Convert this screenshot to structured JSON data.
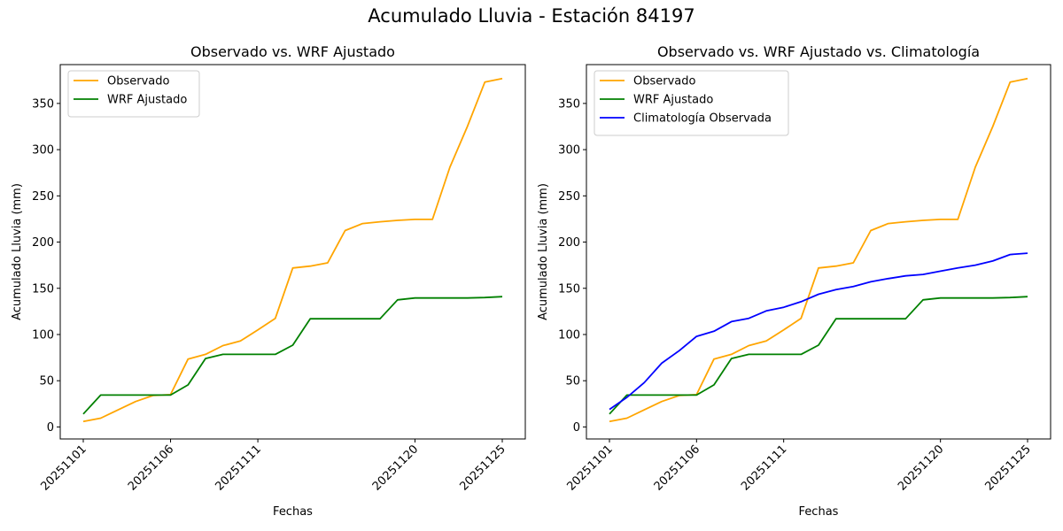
{
  "suptitle": "Acumulado Lluvia - Estación 84197",
  "chart_data": [
    {
      "type": "line",
      "title": "Observado vs. WRF Ajustado",
      "xlabel": "Fechas",
      "ylabel": "Acumulado Lluvia (mm)",
      "ylim": [
        -13,
        392
      ],
      "yticks": [
        0,
        50,
        100,
        150,
        200,
        250,
        300,
        350
      ],
      "xticks": [
        "20251101",
        "20251106",
        "20251111",
        "20251120",
        "20251125"
      ],
      "x": [
        "20251101",
        "20251102",
        "20251103",
        "20251104",
        "20251105",
        "20251106",
        "20251107",
        "20251108",
        "20251109",
        "20251110",
        "20251111",
        "20251112",
        "20251113",
        "20251114",
        "20251115",
        "20251116",
        "20251117",
        "20251118",
        "20251119",
        "20251120",
        "20251121",
        "20251122",
        "20251123",
        "20251124",
        "20251125"
      ],
      "legend_loc": "upper left",
      "grid": false,
      "series": [
        {
          "name": "Observado",
          "color": "#FFA500",
          "values": [
            6,
            9.5,
            18.5,
            27.5,
            34,
            35,
            73.5,
            78.5,
            88,
            93,
            105,
            117.5,
            172,
            174,
            177.5,
            212.5,
            220,
            222,
            223.5,
            224.5,
            224.5,
            281,
            325,
            373,
            377
          ]
        },
        {
          "name": "WRF Ajustado",
          "color": "#008000",
          "values": [
            14,
            34.5,
            34.5,
            34.5,
            34.5,
            34.5,
            45.5,
            74,
            78.5,
            78.5,
            78.5,
            78.5,
            88.5,
            117,
            117,
            117,
            117,
            117,
            137.5,
            139.5,
            139.5,
            139.5,
            139.5,
            140,
            141
          ]
        }
      ]
    },
    {
      "type": "line",
      "title": "Observado vs. WRF Ajustado vs. Climatología",
      "xlabel": "Fechas",
      "ylabel": "Acumulado Lluvia (mm)",
      "ylim": [
        -13,
        392
      ],
      "yticks": [
        0,
        50,
        100,
        150,
        200,
        250,
        300,
        350
      ],
      "xticks": [
        "20251101",
        "20251106",
        "20251111",
        "20251120",
        "20251125"
      ],
      "x": [
        "20251101",
        "20251102",
        "20251103",
        "20251104",
        "20251105",
        "20251106",
        "20251107",
        "20251108",
        "20251109",
        "20251110",
        "20251111",
        "20251112",
        "20251113",
        "20251114",
        "20251115",
        "20251116",
        "20251117",
        "20251118",
        "20251119",
        "20251120",
        "20251121",
        "20251122",
        "20251123",
        "20251124",
        "20251125"
      ],
      "legend_loc": "upper left",
      "grid": false,
      "series": [
        {
          "name": "Observado",
          "color": "#FFA500",
          "values": [
            6,
            9.5,
            18.5,
            27.5,
            34,
            35,
            73.5,
            78.5,
            88,
            93,
            105,
            117.5,
            172,
            174,
            177.5,
            212.5,
            220,
            222,
            223.5,
            224.5,
            224.5,
            281,
            325,
            373,
            377
          ]
        },
        {
          "name": "WRF Ajustado",
          "color": "#008000",
          "values": [
            14,
            34.5,
            34.5,
            34.5,
            34.5,
            34.5,
            45.5,
            74,
            78.5,
            78.5,
            78.5,
            78.5,
            88.5,
            117,
            117,
            117,
            117,
            117,
            137.5,
            139.5,
            139.5,
            139.5,
            139.5,
            140,
            141
          ]
        },
        {
          "name": "Climatología Observada",
          "color": "#0000FF",
          "values": [
            19,
            32,
            48,
            69,
            82.5,
            98,
            103.5,
            114,
            117.5,
            125.5,
            129.5,
            135.5,
            143.5,
            148.5,
            152,
            157,
            160.5,
            163.5,
            165,
            168.5,
            172,
            175,
            179.5,
            186.5,
            188
          ]
        }
      ]
    }
  ]
}
